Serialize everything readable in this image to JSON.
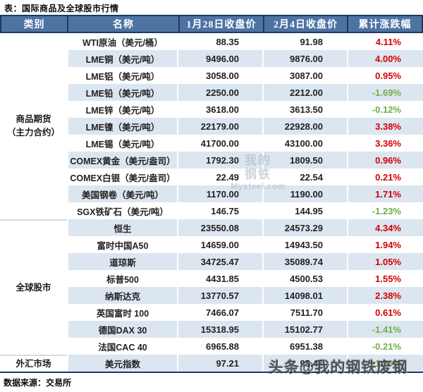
{
  "page": {
    "title": "表：国际商品及全球股市行情",
    "source": "数据来源：交易所"
  },
  "colors": {
    "header_bg": "#4d73a3",
    "navy": "#1f3864",
    "stripe": "#dce6f1",
    "up": "#d40000",
    "down": "#70ad47"
  },
  "table": {
    "headers": [
      "类别",
      "名称",
      "1月28日收盘价",
      "2月4日收盘价",
      "累计涨跌幅"
    ],
    "categories": [
      {
        "lines": [
          "商品期货",
          "（主力合约）"
        ],
        "row_span": 11
      },
      {
        "lines": [
          "全球股市"
        ],
        "row_span": 8
      },
      {
        "lines": [
          "外汇市场"
        ],
        "row_span": 1
      }
    ],
    "rows": [
      {
        "name": "WTI原油（美元/桶）",
        "close_0128": "88.35",
        "close_0204": "91.98",
        "change": "4.11%",
        "direction": "up"
      },
      {
        "name": "LME铜（美元/吨）",
        "close_0128": "9496.00",
        "close_0204": "9876.00",
        "change": "4.00%",
        "direction": "up"
      },
      {
        "name": "LME铝（美元/吨）",
        "close_0128": "3058.00",
        "close_0204": "3087.00",
        "change": "0.95%",
        "direction": "up"
      },
      {
        "name": "LME铅（美元/吨）",
        "close_0128": "2250.00",
        "close_0204": "2212.00",
        "change": "-1.69%",
        "direction": "down"
      },
      {
        "name": "LME锌（美元/吨）",
        "close_0128": "3618.00",
        "close_0204": "3613.50",
        "change": "-0.12%",
        "direction": "down"
      },
      {
        "name": "LME镍（美元/吨）",
        "close_0128": "22179.00",
        "close_0204": "22928.00",
        "change": "3.38%",
        "direction": "up"
      },
      {
        "name": "LME锡（美元/吨）",
        "close_0128": "41700.00",
        "close_0204": "43100.00",
        "change": "3.36%",
        "direction": "up"
      },
      {
        "name": "COMEX黄金（美元/盎司）",
        "close_0128": "1792.30",
        "close_0204": "1809.50",
        "change": "0.96%",
        "direction": "up"
      },
      {
        "name": "COMEX白银（美元/盎司）",
        "close_0128": "22.49",
        "close_0204": "22.54",
        "change": "0.21%",
        "direction": "up"
      },
      {
        "name": "美国钢卷（美元/吨）",
        "close_0128": "1170.00",
        "close_0204": "1190.00",
        "change": "1.71%",
        "direction": "up"
      },
      {
        "name": "SGX铁矿石（美元/吨）",
        "close_0128": "146.75",
        "close_0204": "144.95",
        "change": "-1.23%",
        "direction": "down"
      },
      {
        "name": "恒生",
        "close_0128": "23550.08",
        "close_0204": "24573.29",
        "change": "4.34%",
        "direction": "up"
      },
      {
        "name": "富时中国A50",
        "close_0128": "14659.00",
        "close_0204": "14943.50",
        "change": "1.94%",
        "direction": "up"
      },
      {
        "name": "道琼斯",
        "close_0128": "34725.47",
        "close_0204": "35089.74",
        "change": "1.05%",
        "direction": "up"
      },
      {
        "name": "标普500",
        "close_0128": "4431.85",
        "close_0204": "4500.53",
        "change": "1.55%",
        "direction": "up"
      },
      {
        "name": "纳斯达克",
        "close_0128": "13770.57",
        "close_0204": "14098.01",
        "change": "2.38%",
        "direction": "up"
      },
      {
        "name": "英国富时 100",
        "close_0128": "7466.07",
        "close_0204": "7511.70",
        "change": "0.61%",
        "direction": "up"
      },
      {
        "name": "德国DAX 30",
        "close_0128": "15318.95",
        "close_0204": "15102.77",
        "change": "-1.41%",
        "direction": "down"
      },
      {
        "name": "法国CAC 40",
        "close_0128": "6965.88",
        "close_0204": "6951.38",
        "change": "-0.21%",
        "direction": "down"
      },
      {
        "name": "美元指数",
        "close_0128": "97.21",
        "close_0204": "95.47",
        "change": "-1.79%",
        "direction": "down"
      }
    ]
  },
  "watermarks": {
    "center_line1": "我的",
    "center_line2": "钢铁",
    "center_line3": "Mysteel.com",
    "corner": "头条@我的钢铁废钢"
  }
}
